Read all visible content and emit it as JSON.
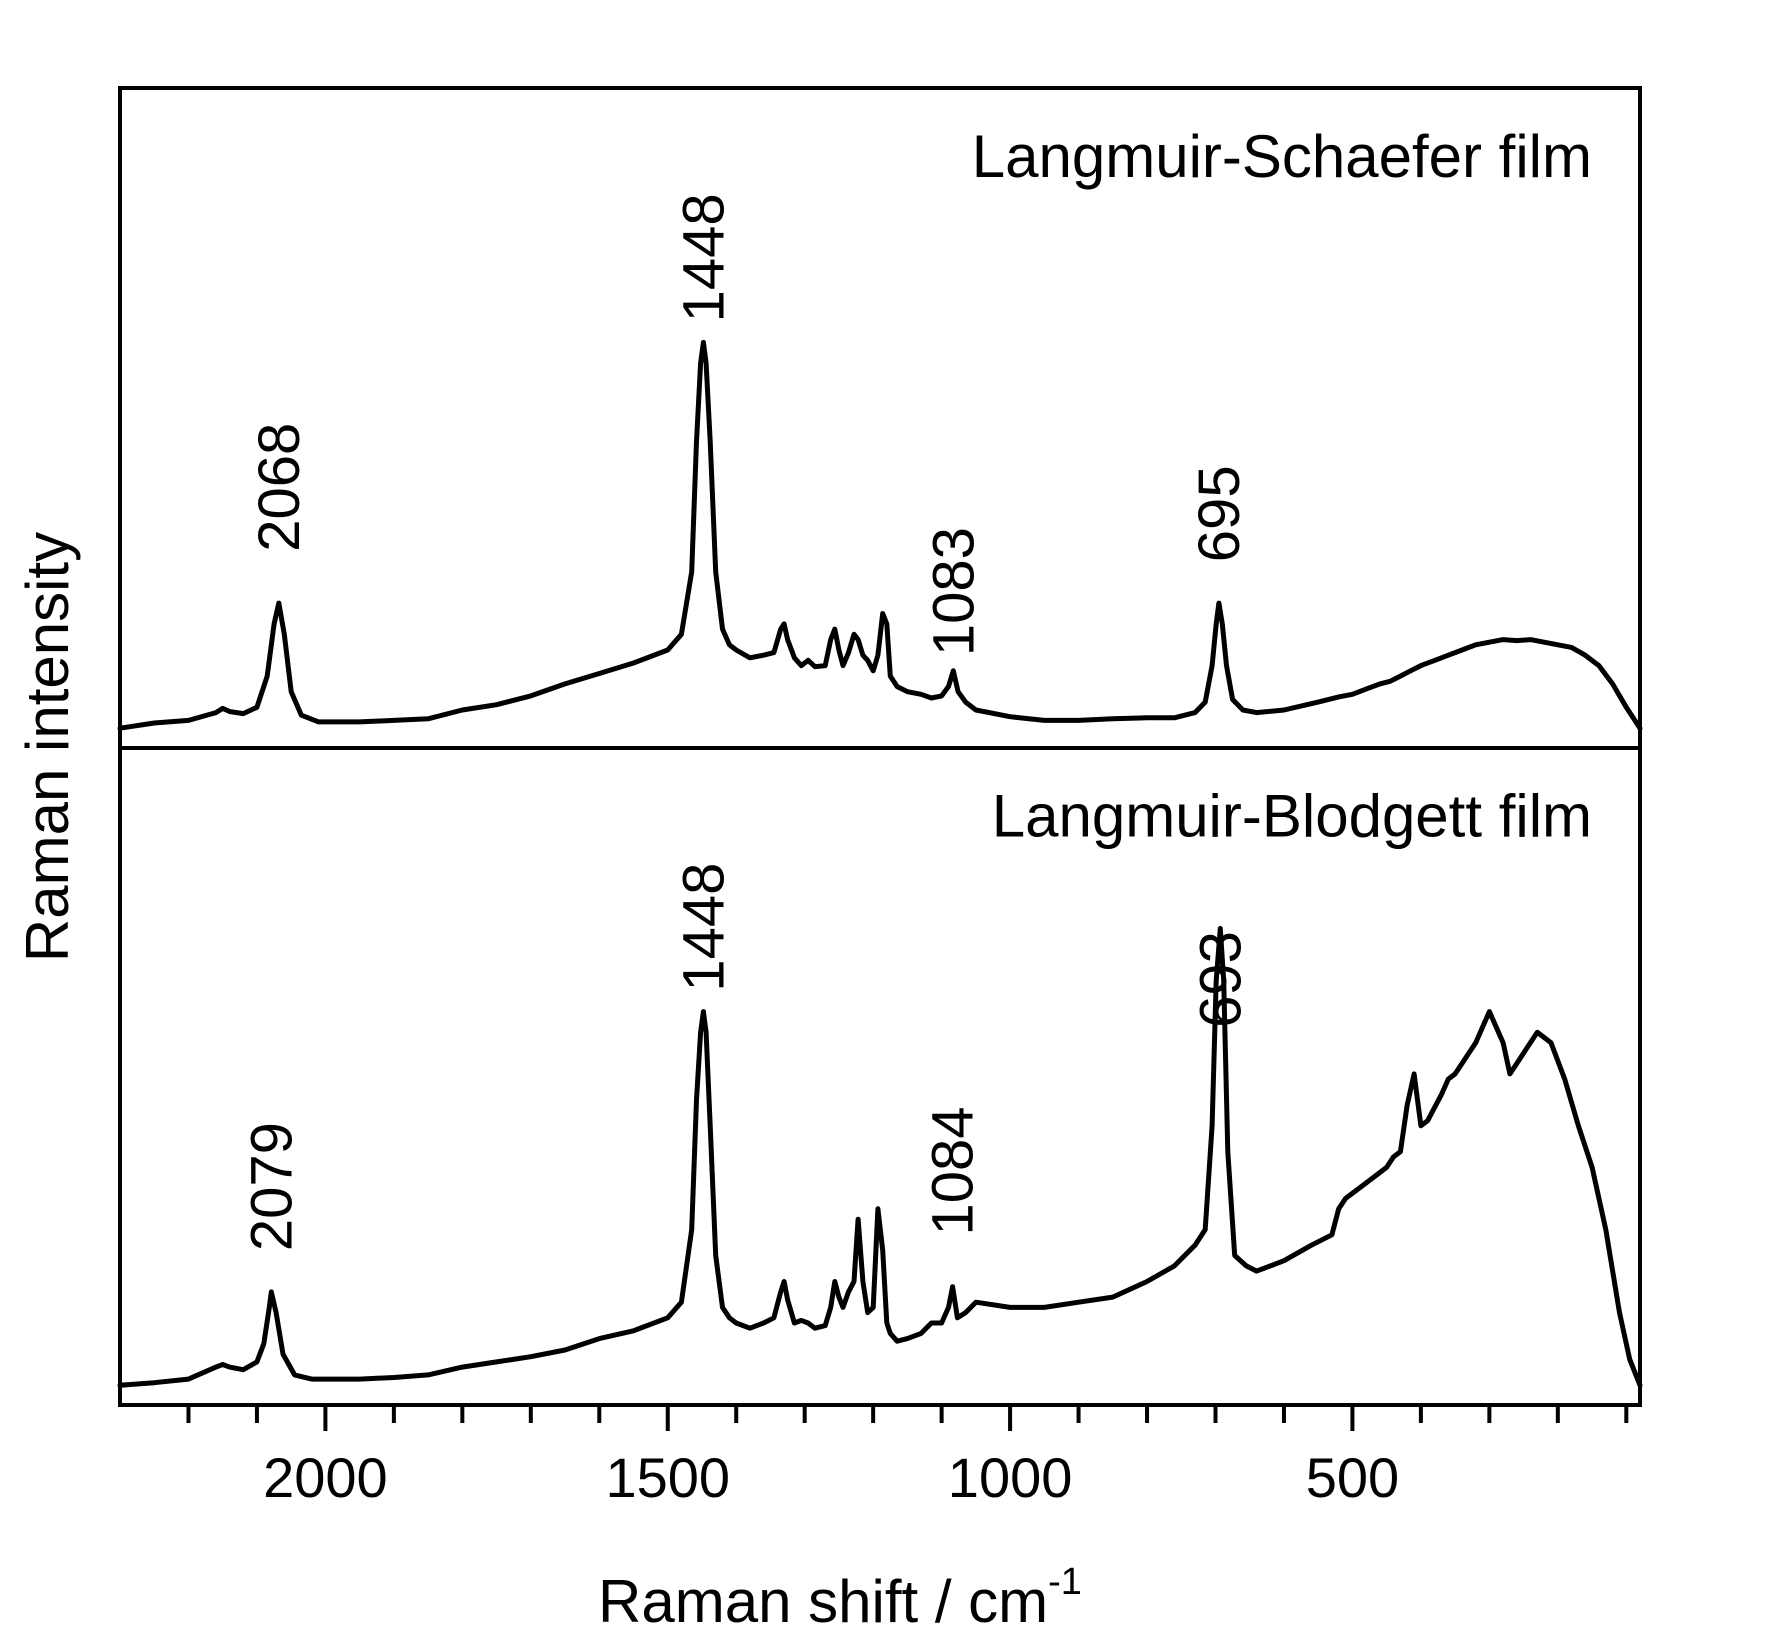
{
  "chart_data": {
    "type": "line",
    "xlabel": "Raman shift / cm",
    "xlabel_superscript": "-1",
    "ylabel": "Raman intensity",
    "xlim": [
      2300,
      80
    ],
    "x_reversed": true,
    "x_ticks_major": [
      2000,
      1500,
      1000,
      500
    ],
    "x_tick_labels": [
      "2000",
      "1500",
      "1000",
      "500"
    ],
    "x_minor_tick_step": 100,
    "y_ticks": "none",
    "ylim": [
      0,
      1
    ],
    "grid": false,
    "panels": [
      {
        "title": "Langmuir-Schaefer film",
        "peak_labels": [
          {
            "x": 2068,
            "y": 0.3,
            "label": "2068"
          },
          {
            "x": 1448,
            "y": 0.74,
            "label": "1448"
          },
          {
            "x": 1083,
            "y": 0.1,
            "label": "1083"
          },
          {
            "x": 695,
            "y": 0.28,
            "label": "695"
          }
        ],
        "series": [
          {
            "x": [
              2300,
              2250,
              2200,
              2160,
              2150,
              2140,
              2120,
              2100,
              2085,
              2075,
              2068,
              2060,
              2050,
              2035,
              2010,
              1950,
              1900,
              1850,
              1800,
              1750,
              1700,
              1650,
              1600,
              1550,
              1500,
              1480,
              1465,
              1458,
              1452,
              1448,
              1444,
              1438,
              1430,
              1420,
              1410,
              1400,
              1380,
              1360,
              1345,
              1335,
              1330,
              1325,
              1315,
              1305,
              1295,
              1285,
              1270,
              1262,
              1256,
              1250,
              1244,
              1236,
              1228,
              1222,
              1215,
              1208,
              1200,
              1193,
              1186,
              1180,
              1175,
              1165,
              1150,
              1130,
              1115,
              1100,
              1090,
              1083,
              1076,
              1065,
              1050,
              1000,
              950,
              900,
              850,
              800,
              760,
              730,
              715,
              705,
              699,
              695,
              690,
              684,
              675,
              660,
              640,
              600,
              550,
              520,
              500,
              480,
              460,
              445,
              430,
              415,
              400,
              380,
              360,
              340,
              320,
              300,
              280,
              260,
              240,
              220,
              200,
              180,
              160,
              140,
              120,
              100,
              80
            ],
            "y": [
              0.0,
              0.01,
              0.015,
              0.03,
              0.038,
              0.032,
              0.028,
              0.04,
              0.1,
              0.2,
              0.24,
              0.18,
              0.07,
              0.025,
              0.012,
              0.012,
              0.015,
              0.018,
              0.035,
              0.045,
              0.062,
              0.085,
              0.105,
              0.125,
              0.15,
              0.18,
              0.3,
              0.55,
              0.7,
              0.74,
              0.7,
              0.55,
              0.3,
              0.19,
              0.16,
              0.15,
              0.135,
              0.14,
              0.145,
              0.19,
              0.2,
              0.17,
              0.135,
              0.12,
              0.13,
              0.118,
              0.12,
              0.17,
              0.19,
              0.15,
              0.12,
              0.145,
              0.18,
              0.17,
              0.14,
              0.13,
              0.11,
              0.14,
              0.22,
              0.2,
              0.1,
              0.08,
              0.07,
              0.065,
              0.058,
              0.062,
              0.08,
              0.11,
              0.07,
              0.05,
              0.035,
              0.022,
              0.015,
              0.015,
              0.018,
              0.02,
              0.02,
              0.03,
              0.05,
              0.12,
              0.2,
              0.24,
              0.2,
              0.12,
              0.055,
              0.035,
              0.03,
              0.035,
              0.05,
              0.06,
              0.065,
              0.075,
              0.085,
              0.09,
              0.1,
              0.11,
              0.12,
              0.13,
              0.14,
              0.15,
              0.16,
              0.165,
              0.17,
              0.168,
              0.17,
              0.165,
              0.16,
              0.155,
              0.14,
              0.12,
              0.085,
              0.04,
              0.0
            ]
          }
        ]
      },
      {
        "title": "Langmuir-Blodgett film",
        "peak_labels": [
          {
            "x": 2079,
            "y": 0.22,
            "label": "2079"
          },
          {
            "x": 1448,
            "y": 0.72,
            "label": "1448"
          },
          {
            "x": 1084,
            "y": 0.25,
            "label": "1084"
          },
          {
            "x": 693,
            "y": 0.65,
            "label": "693"
          }
        ],
        "series": [
          {
            "x": [
              2300,
              2250,
              2200,
              2160,
              2150,
              2140,
              2120,
              2100,
              2090,
              2082,
              2079,
              2072,
              2062,
              2045,
              2020,
              1950,
              1900,
              1850,
              1800,
              1750,
              1700,
              1650,
              1600,
              1550,
              1500,
              1480,
              1465,
              1458,
              1452,
              1448,
              1444,
              1438,
              1430,
              1420,
              1410,
              1400,
              1380,
              1360,
              1345,
              1335,
              1330,
              1325,
              1315,
              1305,
              1295,
              1285,
              1270,
              1262,
              1256,
              1250,
              1244,
              1236,
              1228,
              1222,
              1215,
              1208,
              1200,
              1193,
              1186,
              1180,
              1175,
              1165,
              1150,
              1130,
              1115,
              1100,
              1090,
              1084,
              1077,
              1065,
              1050,
              1000,
              950,
              900,
              850,
              800,
              760,
              730,
              715,
              705,
              699,
              693,
              688,
              682,
              672,
              655,
              640,
              600,
              560,
              530,
              520,
              510,
              490,
              470,
              450,
              440,
              430,
              420,
              410,
              400,
              390,
              370,
              360,
              350,
              340,
              320,
              300,
              280,
              270,
              260,
              245,
              230,
              210,
              190,
              170,
              150,
              130,
              110,
              95,
              80
            ],
            "y": [
              0.0,
              0.005,
              0.012,
              0.035,
              0.04,
              0.035,
              0.03,
              0.045,
              0.08,
              0.15,
              0.18,
              0.14,
              0.06,
              0.02,
              0.012,
              0.012,
              0.015,
              0.02,
              0.035,
              0.045,
              0.055,
              0.068,
              0.09,
              0.105,
              0.13,
              0.16,
              0.3,
              0.55,
              0.68,
              0.72,
              0.68,
              0.5,
              0.25,
              0.15,
              0.13,
              0.12,
              0.11,
              0.12,
              0.13,
              0.18,
              0.2,
              0.165,
              0.12,
              0.125,
              0.12,
              0.11,
              0.115,
              0.15,
              0.2,
              0.17,
              0.15,
              0.18,
              0.2,
              0.32,
              0.2,
              0.14,
              0.15,
              0.34,
              0.26,
              0.12,
              0.1,
              0.085,
              0.09,
              0.1,
              0.12,
              0.12,
              0.15,
              0.19,
              0.13,
              0.14,
              0.16,
              0.15,
              0.15,
              0.16,
              0.17,
              0.2,
              0.23,
              0.27,
              0.3,
              0.5,
              0.78,
              0.88,
              0.78,
              0.45,
              0.25,
              0.23,
              0.22,
              0.24,
              0.27,
              0.29,
              0.34,
              0.36,
              0.38,
              0.4,
              0.42,
              0.44,
              0.45,
              0.54,
              0.6,
              0.5,
              0.51,
              0.56,
              0.59,
              0.6,
              0.62,
              0.66,
              0.72,
              0.66,
              0.6,
              0.62,
              0.65,
              0.68,
              0.66,
              0.59,
              0.5,
              0.42,
              0.3,
              0.14,
              0.05,
              0.0
            ]
          }
        ]
      }
    ]
  }
}
